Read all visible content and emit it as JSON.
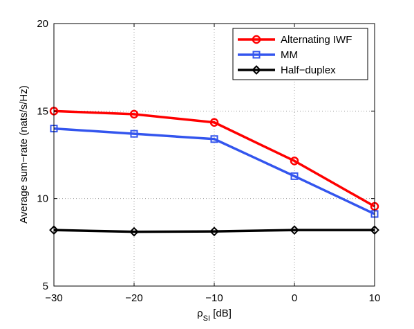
{
  "chart_data": {
    "type": "line",
    "title": "",
    "xlabel": {
      "main": "ρ",
      "subscript": "SI",
      "suffix": " [dB]"
    },
    "ylabel": "Average sum−rate (nats/s/Hz)",
    "xlim": [
      -30,
      10
    ],
    "ylim": [
      5,
      20
    ],
    "xticks": [
      -30,
      -20,
      -10,
      0,
      10
    ],
    "xtick_labels": [
      "−30",
      "−20",
      "−10",
      "0",
      "10"
    ],
    "yticks": [
      5,
      10,
      15,
      20
    ],
    "ytick_labels": [
      "5",
      "10",
      "15",
      "20"
    ],
    "grid": true,
    "legend_position": "top-right",
    "x": [
      -30,
      -20,
      -10,
      0,
      10
    ],
    "series": [
      {
        "name": "Alternating IWF",
        "color": "#ff0000",
        "marker": "circle",
        "values": [
          15.0,
          14.82,
          14.35,
          12.15,
          9.55
        ]
      },
      {
        "name": "MM",
        "color": "#3355ee",
        "marker": "square",
        "values": [
          14.0,
          13.7,
          13.4,
          11.28,
          9.12
        ]
      },
      {
        "name": "Half−duplex",
        "color": "#000000",
        "marker": "diamond",
        "values": [
          8.2,
          8.1,
          8.12,
          8.2,
          8.2
        ]
      }
    ]
  }
}
